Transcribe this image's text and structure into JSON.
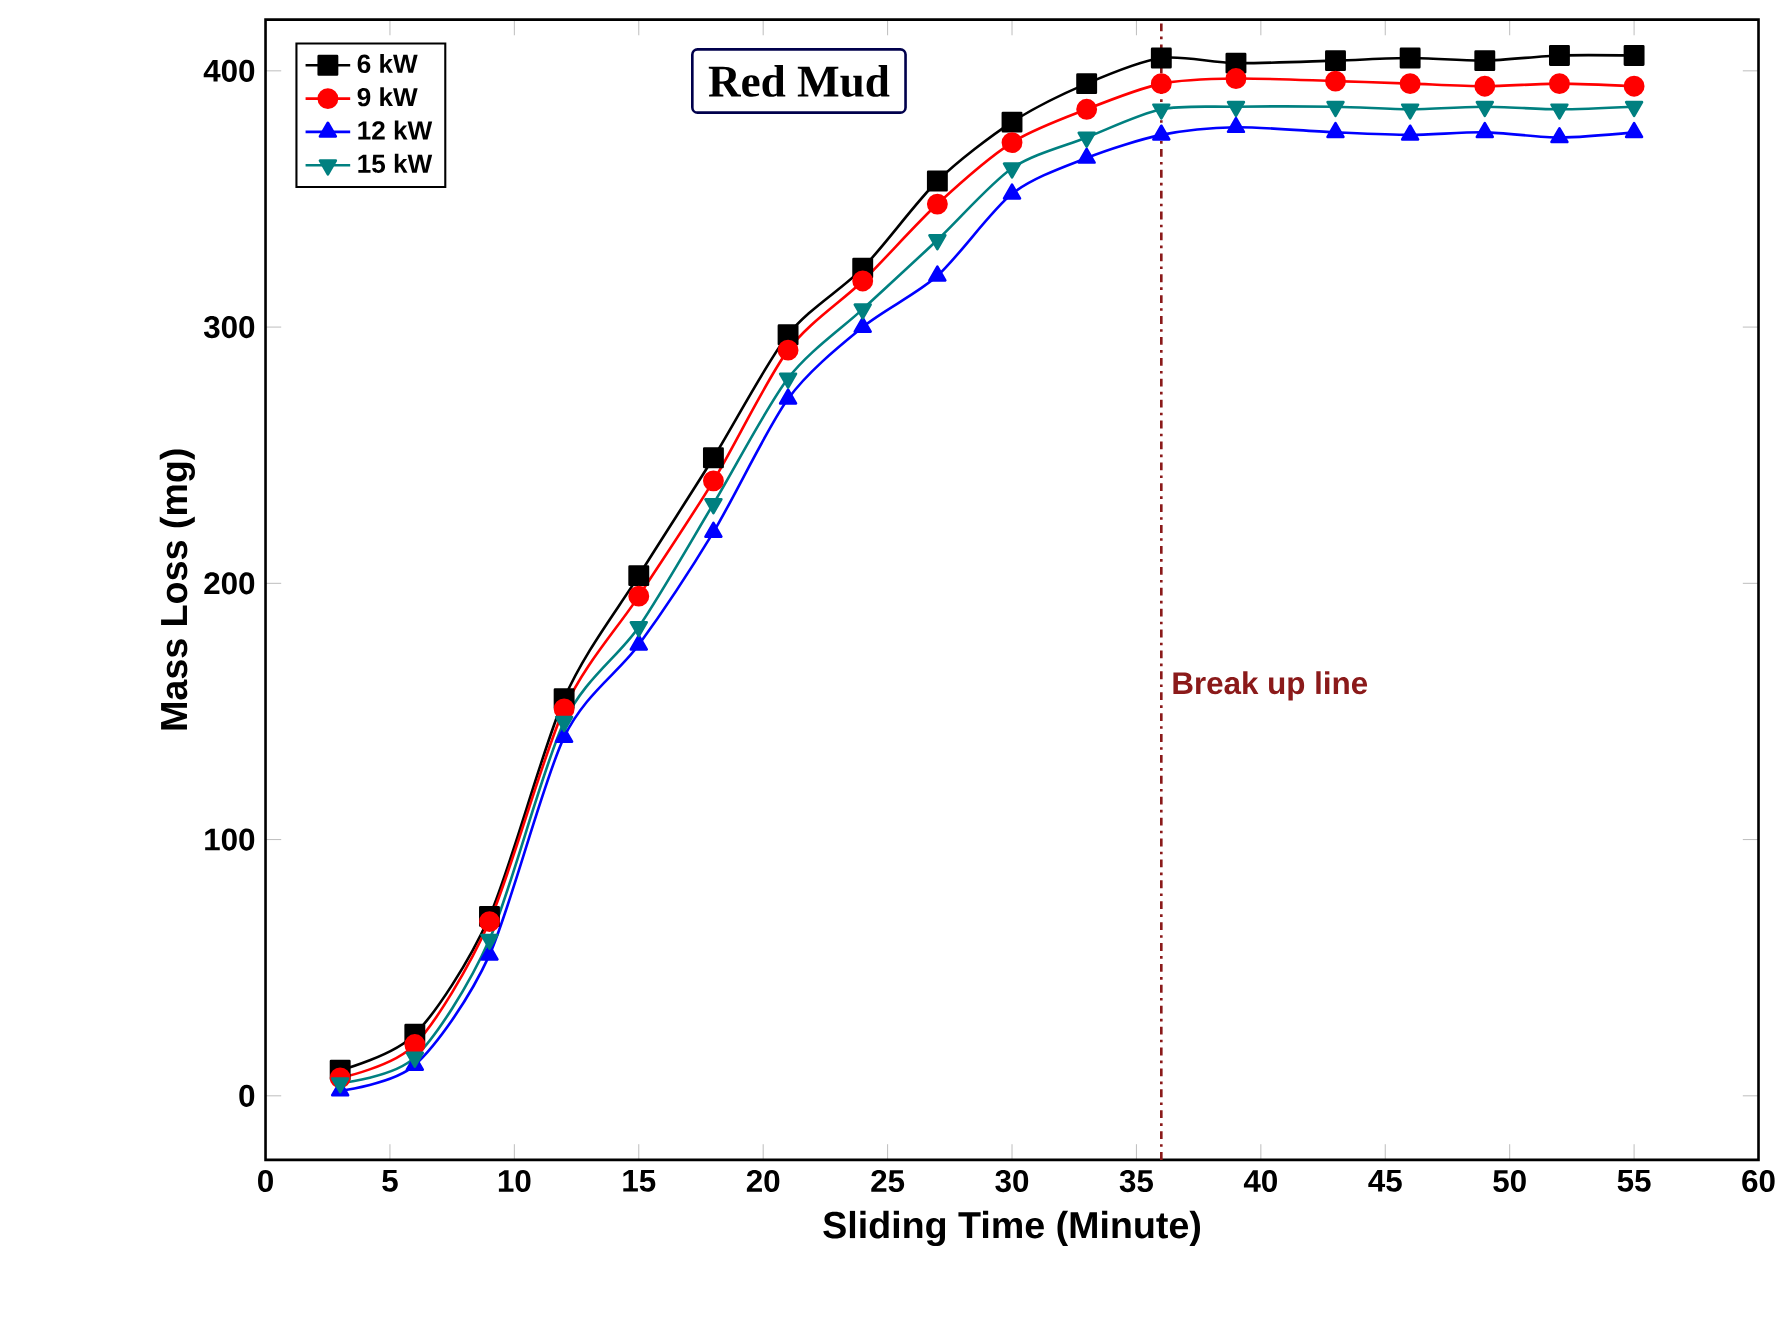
{
  "chart_data": {
    "type": "line",
    "xlabel": "Sliding Time (Minute)",
    "ylabel": "Mass Loss (mg)",
    "x": [
      3,
      6,
      9,
      12,
      15,
      18,
      21,
      24,
      27,
      30,
      33,
      36,
      39,
      43,
      46,
      49,
      52,
      55
    ],
    "series": [
      {
        "name": "6 kW",
        "color": "#000000",
        "marker": "square",
        "values": [
          10,
          24,
          70,
          155,
          203,
          249,
          297,
          323,
          357,
          380,
          395,
          405,
          403,
          404,
          405,
          404,
          406,
          406
        ]
      },
      {
        "name": "9 kW",
        "color": "#ff0000",
        "marker": "circle",
        "values": [
          7,
          20,
          68,
          151,
          195,
          240,
          291,
          318,
          348,
          372,
          385,
          395,
          397,
          396,
          395,
          394,
          395,
          394
        ]
      },
      {
        "name": "12 kW",
        "color": "#0000ff",
        "marker": "triangle",
        "values": [
          2,
          12,
          55,
          140,
          176,
          220,
          272,
          300,
          320,
          352,
          366,
          375,
          378,
          376,
          375,
          376,
          374,
          376
        ]
      },
      {
        "name": "15 kW",
        "color": "#008080",
        "marker": "triangle-down",
        "values": [
          5,
          15,
          61,
          146,
          183,
          231,
          280,
          307,
          334,
          362,
          374,
          385,
          386,
          386,
          385,
          386,
          385,
          386
        ]
      }
    ],
    "xlim": [
      0,
      60
    ],
    "ylim": [
      -25,
      420
    ],
    "xticks": [
      0,
      5,
      10,
      15,
      20,
      25,
      30,
      35,
      40,
      45,
      50,
      55,
      60
    ],
    "yticks": [
      0,
      100,
      200,
      300,
      400
    ],
    "ref_lines": [
      {
        "axis": "x",
        "value": 36,
        "label": "Break up line",
        "color": "#8b1a1a",
        "line_style": "dashdot"
      }
    ],
    "annotations": [
      "Red Mud"
    ],
    "legend": "top left"
  }
}
